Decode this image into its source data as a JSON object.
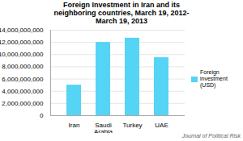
{
  "chart_data": {
    "type": "bar",
    "title": "Foreign Investment in Iran and its\nneighboring countries, March 19, 2012-\nMarch 19, 2013",
    "categories": [
      "Iran",
      "Saudi\nArabia",
      "Turkey",
      "UAE"
    ],
    "series": [
      {
        "name": "Foreign investment  (USD)",
        "color": "#55d4f5",
        "values": [
          5000000000,
          12000000000,
          12700000000,
          9500000000
        ]
      }
    ],
    "ylim": [
      0,
      14000000000
    ],
    "yticks": [
      0,
      {
        "value": 2000000000,
        "label": "2,000,000,000"
      },
      {
        "value": 4000000000,
        "label": "4,000,000,000"
      },
      {
        "value": 6000000000,
        "label": "6,000,000,000"
      },
      {
        "value": 8000000000,
        "label": "8,000,000,000"
      },
      {
        "value": 10000000000,
        "label": "10,000,000,000"
      },
      {
        "value": 12000000000,
        "label": "12,000,000,000"
      },
      {
        "value": 14000000000,
        "label": "14,000,000,000"
      }
    ],
    "grid": true,
    "legend": "right",
    "footnote": "Journal of Political Risk"
  }
}
